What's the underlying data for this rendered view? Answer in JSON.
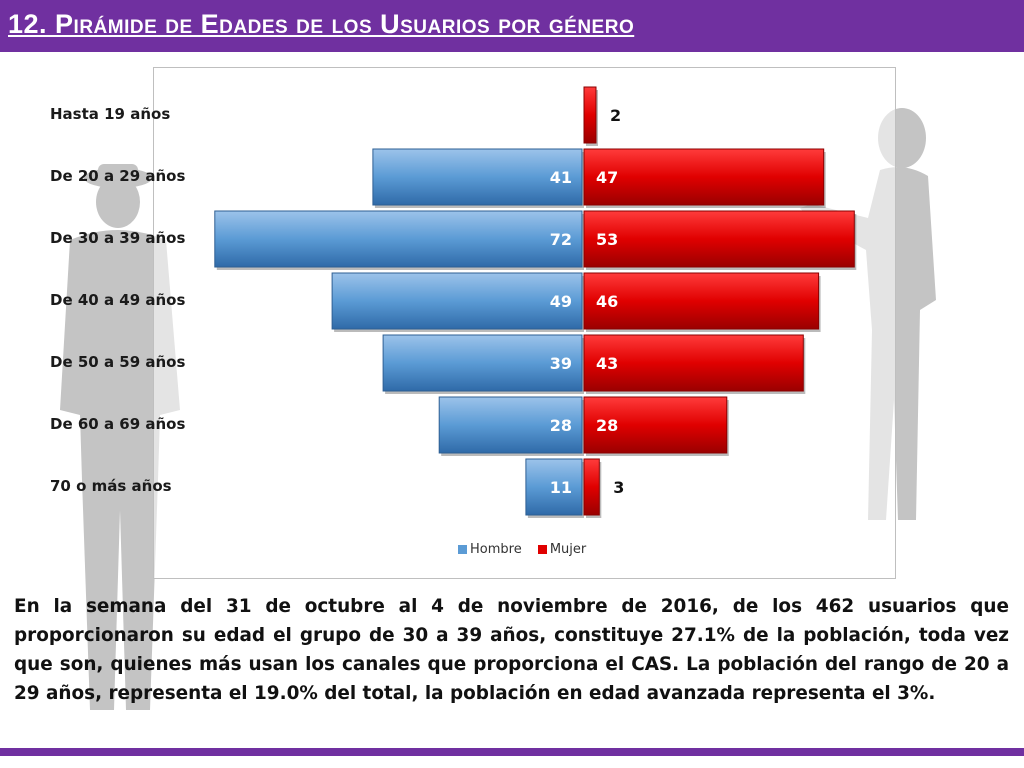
{
  "title": "12. Pirámide de Edades de los Usuarios por género",
  "colors": {
    "accent": "#7030a0",
    "hombre": "#5b9bd5",
    "mujer": "#e00000"
  },
  "chart_data": {
    "type": "bar",
    "orientation": "horizontal-diverging",
    "categories": [
      "Hasta 19 años",
      "De 20 a 29 años",
      "De 30 a 39 años",
      "De 40 a 49 años",
      "De 50 a 59 años",
      "De 60 a 69 años",
      "70 o más años"
    ],
    "series": [
      {
        "name": "Hombre",
        "values": [
          0,
          41,
          72,
          49,
          39,
          28,
          11
        ]
      },
      {
        "name": "Mujer",
        "values": [
          2,
          47,
          53,
          46,
          43,
          28,
          3
        ]
      }
    ],
    "data_labels": {
      "Hombre": [
        "",
        "41",
        "72",
        "49",
        "39",
        "28",
        "11"
      ],
      "Mujer": [
        "2",
        "47",
        "53",
        "46",
        "43",
        "28",
        "3"
      ]
    },
    "legend": [
      "Hombre",
      "Mujer"
    ],
    "legend_position": "bottom",
    "grid": false
  },
  "paragraph": "En la semana del 31 de octubre al 4 de noviembre de 2016, de los 462 usuarios  que proporcionaron su edad el grupo de 30 a 39 años,  constituye 27.1% de la población, toda vez que son, quienes más usan los canales que proporciona el CAS. La población del rango de 20 a 29 años, representa el 19.0% del total, la población en edad avanzada representa el 3%."
}
